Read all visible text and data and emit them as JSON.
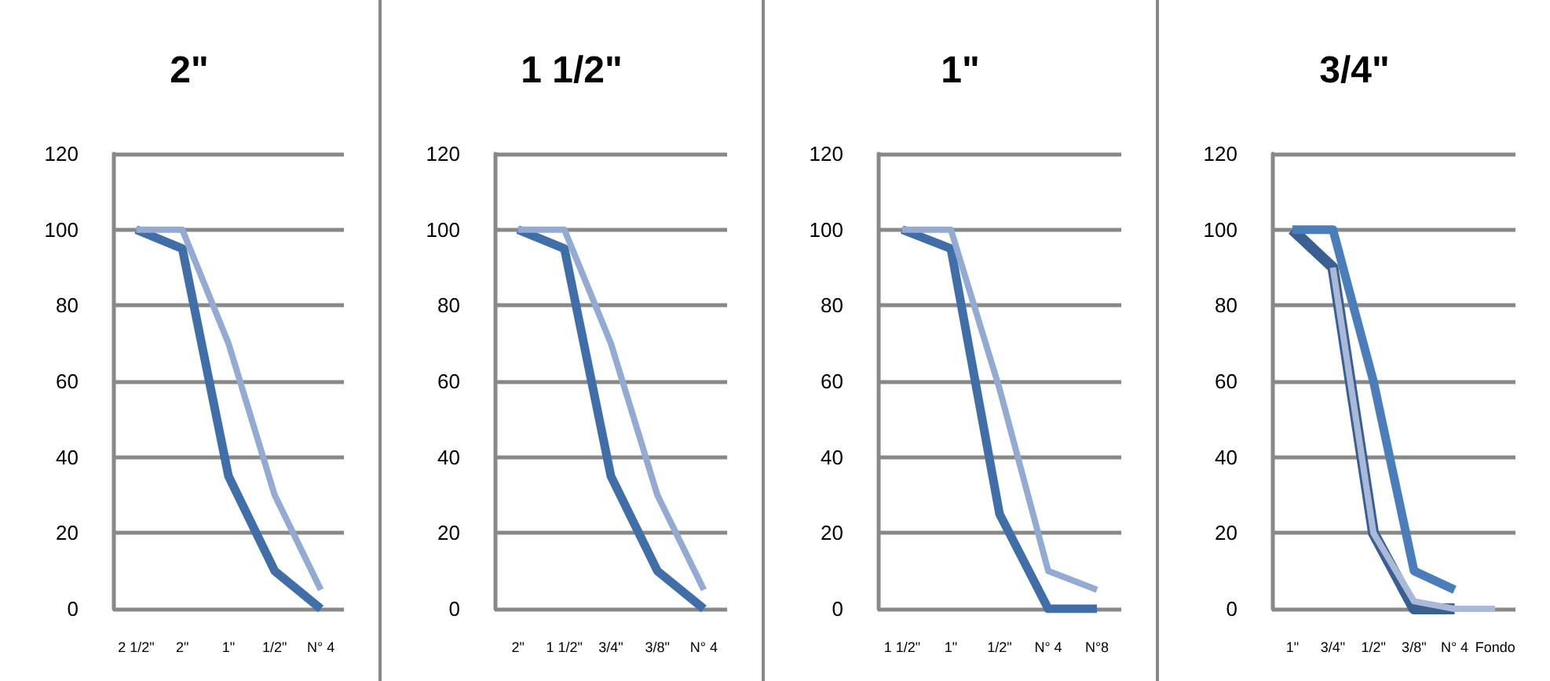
{
  "chart_data": [
    {
      "type": "line",
      "title": "2\"",
      "categories": [
        "2 1/2\"",
        "2\"",
        "1\"",
        "1/2\"",
        "N° 4"
      ],
      "ylim": [
        0,
        120
      ],
      "yticks": [
        0,
        20,
        40,
        60,
        80,
        100,
        120
      ],
      "grid": "y",
      "marker": "none",
      "series": [
        {
          "color": "#3f6ea8",
          "values": [
            100,
            95,
            35,
            10,
            0
          ]
        },
        {
          "color": "#93abd2",
          "values": [
            100,
            100,
            70,
            30,
            5
          ]
        }
      ]
    },
    {
      "type": "line",
      "title": "1 1/2\"",
      "categories": [
        "2\"",
        "1 1/2\"",
        "3/4\"",
        "3/8\"",
        "N° 4"
      ],
      "ylim": [
        0,
        120
      ],
      "yticks": [
        0,
        20,
        40,
        60,
        80,
        100,
        120
      ],
      "grid": "y",
      "marker": "none",
      "series": [
        {
          "color": "#3f6ea8",
          "values": [
            100,
            95,
            35,
            10,
            0
          ]
        },
        {
          "color": "#93abd2",
          "values": [
            100,
            100,
            70,
            30,
            5
          ]
        }
      ]
    },
    {
      "type": "line",
      "title": "1\"",
      "categories": [
        "1 1/2\"",
        "1\"",
        "1/2\"",
        "N° 4",
        "N°8"
      ],
      "ylim": [
        0,
        120
      ],
      "yticks": [
        0,
        20,
        40,
        60,
        80,
        100,
        120
      ],
      "grid": "y",
      "marker": "none",
      "series": [
        {
          "color": "#3f6ea8",
          "values": [
            100,
            95,
            25,
            0,
            0
          ]
        },
        {
          "color": "#93abd2",
          "values": [
            100,
            100,
            58,
            10,
            5
          ]
        }
      ]
    },
    {
      "type": "line",
      "title": "3/4\"",
      "categories": [
        "1\"",
        "3/4\"",
        "1/2\"",
        "3/8\"",
        "N° 4",
        "Fondo"
      ],
      "ylim": [
        0,
        120
      ],
      "yticks": [
        0,
        20,
        40,
        60,
        80,
        100,
        120
      ],
      "grid": "y",
      "marker": "none",
      "series": [
        {
          "color": "#3a5f93",
          "values": [
            100,
            90,
            20,
            0,
            0,
            null
          ]
        },
        {
          "color": "#4a7ebb",
          "values": [
            100,
            100,
            60,
            10,
            5,
            null
          ]
        },
        {
          "color": "#a9b9d7",
          "values": [
            null,
            90,
            20,
            2,
            0,
            0
          ]
        }
      ]
    }
  ]
}
